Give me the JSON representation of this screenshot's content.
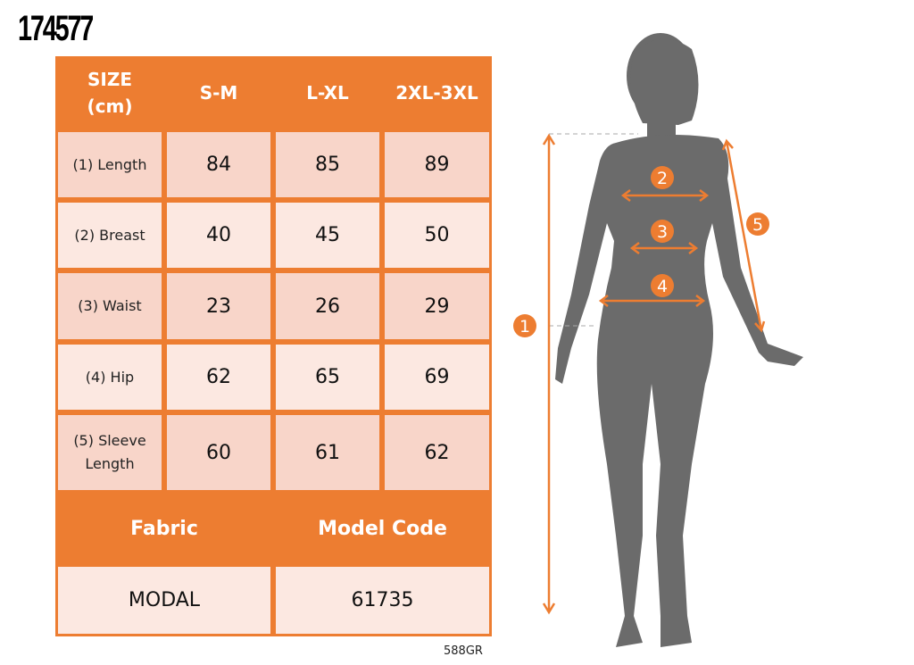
{
  "product_code": "174577",
  "table": {
    "header": [
      "SIZE\n(cm)",
      "S-M",
      "L-XL",
      "2XL-3XL"
    ],
    "header_line1": "SIZE",
    "header_line2": "(cm)",
    "rows": [
      {
        "label": "(1) Length",
        "values": [
          "84",
          "85",
          "89"
        ]
      },
      {
        "label": "(2) Breast",
        "values": [
          "40",
          "45",
          "50"
        ]
      },
      {
        "label": "(3) Waist",
        "values": [
          "23",
          "26",
          "29"
        ]
      },
      {
        "label": "(4) Hip",
        "values": [
          "62",
          "65",
          "69"
        ]
      },
      {
        "label_line1": "(5) Sleeve",
        "label_line2": "Length",
        "values": [
          "60",
          "61",
          "62"
        ]
      }
    ],
    "fabric_label": "Fabric",
    "model_code_label": "Model Code",
    "fabric_value": "MODAL",
    "model_code_value": "61735"
  },
  "footer_code": "588GR",
  "figure": {
    "markers": [
      "1",
      "2",
      "3",
      "4",
      "5"
    ]
  },
  "colors": {
    "accent": "#ed7d31",
    "row_dark": "#f8d5c9",
    "row_light": "#fce8e1",
    "silhouette": "#6b6b6b"
  }
}
